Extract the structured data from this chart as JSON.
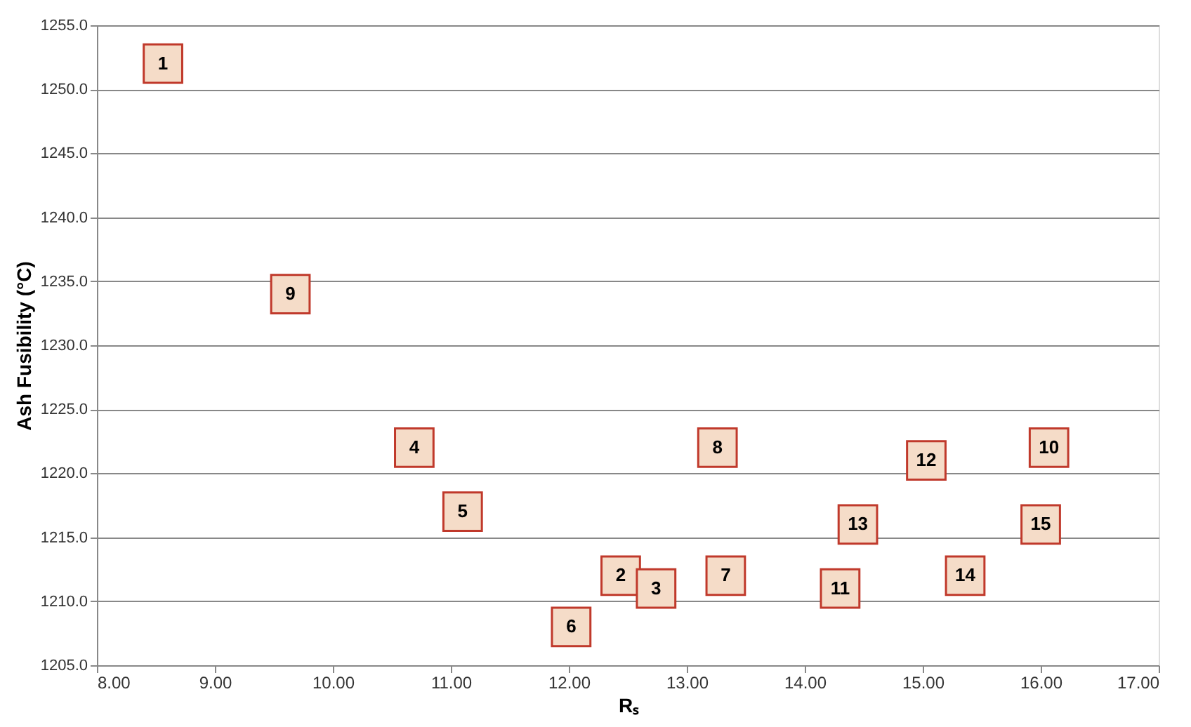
{
  "chart_data": {
    "type": "scatter",
    "xlabel": "Rₛ",
    "ylabel": "Ash Fusibility (°C)",
    "x": [
      8.56,
      12.44,
      12.74,
      10.69,
      11.1,
      12.02,
      13.33,
      13.26,
      9.64,
      16.07,
      14.3,
      15.03,
      14.45,
      15.36,
      16.0
    ],
    "series": [
      {
        "color": "#f5dcc8",
        "values": [
          1252,
          1212,
          1211,
          1222,
          1217,
          1208,
          1212,
          1222,
          1234,
          1222,
          1211,
          1221,
          1216,
          1212,
          1216
        ]
      }
    ],
    "annotations": [
      {
        "text": "1",
        "x": 8.56,
        "y": 1252
      },
      {
        "text": "2",
        "x": 12.44,
        "y": 1212
      },
      {
        "text": "3",
        "x": 12.74,
        "y": 1211
      },
      {
        "text": "4",
        "x": 10.69,
        "y": 1222
      },
      {
        "text": "5",
        "x": 11.1,
        "y": 1217
      },
      {
        "text": "6",
        "x": 12.02,
        "y": 1208
      },
      {
        "text": "7",
        "x": 13.33,
        "y": 1212
      },
      {
        "text": "8",
        "x": 13.26,
        "y": 1222
      },
      {
        "text": "9",
        "x": 9.64,
        "y": 1234
      },
      {
        "text": "10",
        "x": 16.07,
        "y": 1222
      },
      {
        "text": "11",
        "x": 14.3,
        "y": 1211
      },
      {
        "text": "12",
        "x": 15.03,
        "y": 1221
      },
      {
        "text": "13",
        "x": 14.45,
        "y": 1216
      },
      {
        "text": "14",
        "x": 15.36,
        "y": 1212
      },
      {
        "text": "15",
        "x": 16.0,
        "y": 1216
      }
    ],
    "xlim": [
      8,
      17
    ],
    "xticks": [
      {
        "value": 8,
        "label": "8.00"
      },
      {
        "value": 9,
        "label": "9.00"
      },
      {
        "value": 10,
        "label": "10.00"
      },
      {
        "value": 11,
        "label": "11.00"
      },
      {
        "value": 12,
        "label": "12.00"
      },
      {
        "value": 13,
        "label": "13.00"
      },
      {
        "value": 14,
        "label": "14.00"
      },
      {
        "value": 15,
        "label": "15.00"
      },
      {
        "value": 16,
        "label": "16.00"
      },
      {
        "value": 17,
        "label": "17.00"
      }
    ],
    "ylim": [
      1205,
      1255
    ],
    "yticks": [
      {
        "value": 1205,
        "label": "1205.0"
      },
      {
        "value": 1210,
        "label": "1210.0"
      },
      {
        "value": 1215,
        "label": "1215.0"
      },
      {
        "value": 1220,
        "label": "1220.0"
      },
      {
        "value": 1225,
        "label": "1225.0"
      },
      {
        "value": 1230,
        "label": "1230.0"
      },
      {
        "value": 1235,
        "label": "1235.0"
      },
      {
        "value": 1240,
        "label": "1240.0"
      },
      {
        "value": 1245,
        "label": "1245.0"
      },
      {
        "value": 1250,
        "label": "1250.0"
      },
      {
        "value": 1255,
        "label": "1255.0"
      }
    ],
    "grid": "y",
    "marker": "square"
  }
}
